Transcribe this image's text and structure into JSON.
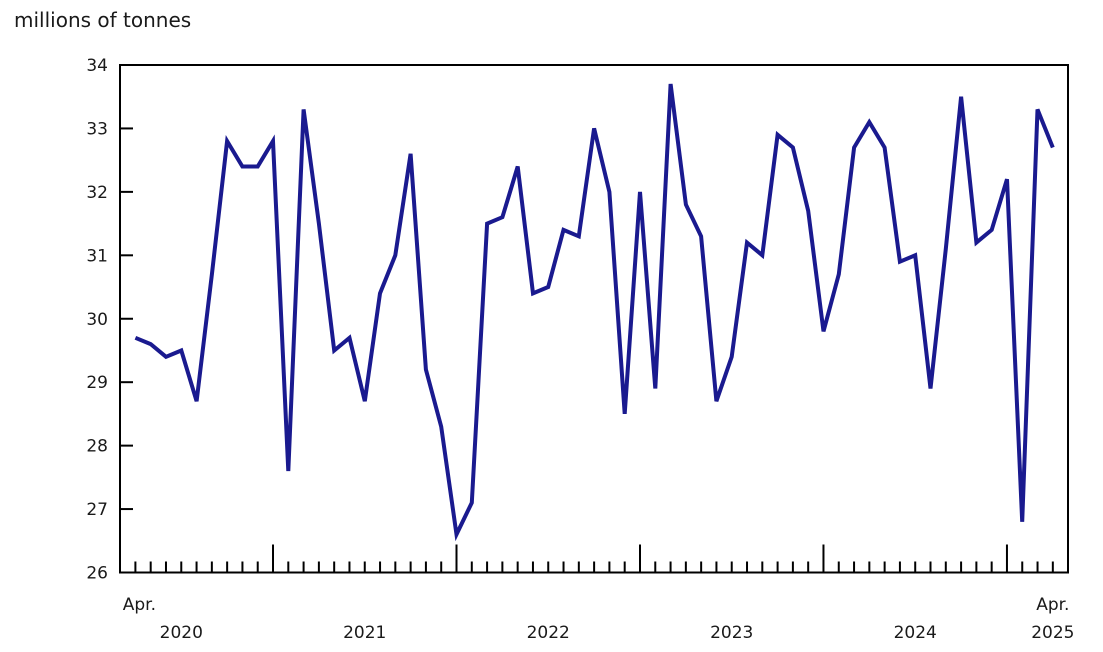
{
  "chart_data": {
    "type": "line",
    "title": "millions of tonnes",
    "x_start": "2020-04",
    "x_end": "2025-04",
    "frequency": "monthly",
    "ylim": [
      26,
      34
    ],
    "y_tick_labels": [
      "34",
      "33",
      "32",
      "31",
      "30",
      "29",
      "28",
      "27",
      "26"
    ],
    "x_year_labels": [
      "2020",
      "2021",
      "2022",
      "2023",
      "2024",
      "2025"
    ],
    "x_edge_labels": {
      "first": "Apr.",
      "last": "Apr."
    },
    "grid": "off",
    "legend": "none",
    "line_color": "#1a1a8f",
    "axis_color": "#000000",
    "text_color": "#1a1a1a",
    "series": [
      {
        "values": [
          29.7,
          29.6,
          29.4,
          29.5,
          28.7,
          30.7,
          32.8,
          32.4,
          32.4,
          32.8,
          27.6,
          33.3,
          31.5,
          29.5,
          29.7,
          28.7,
          30.4,
          31.0,
          32.6,
          29.2,
          28.3,
          26.6,
          27.1,
          31.5,
          31.6,
          32.4,
          30.4,
          30.5,
          31.4,
          31.3,
          33.0,
          32.0,
          28.5,
          32.0,
          28.9,
          33.7,
          31.8,
          31.3,
          28.7,
          29.4,
          31.2,
          31.0,
          32.9,
          32.7,
          31.7,
          29.8,
          30.7,
          32.7,
          33.1,
          32.7,
          30.9,
          31.0,
          28.9,
          31.1,
          33.5,
          31.2,
          31.4,
          32.2,
          26.8,
          33.3,
          32.7
        ]
      }
    ]
  }
}
